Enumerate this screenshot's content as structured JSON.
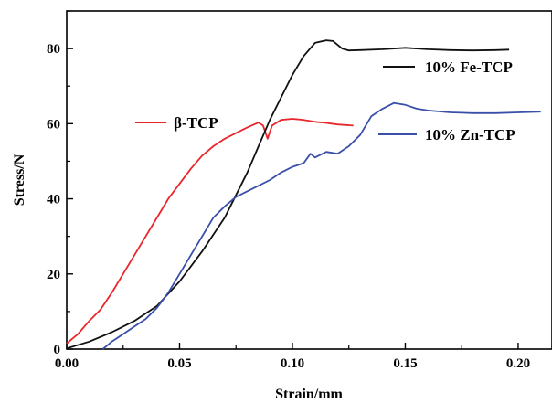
{
  "chart_data": {
    "type": "line",
    "title": "",
    "xlabel": "Strain/mm",
    "ylabel": "Stress/N",
    "xlim": [
      0,
      0.215
    ],
    "ylim": [
      0,
      90
    ],
    "x_ticks": [
      "0.00",
      "0.05",
      "0.10",
      "0.15",
      "0.20"
    ],
    "x_tick_values": [
      0,
      0.05,
      0.1,
      0.15,
      0.2
    ],
    "y_ticks": [
      "0",
      "20",
      "40",
      "60",
      "80"
    ],
    "y_tick_values": [
      0,
      20,
      40,
      60,
      80
    ],
    "grid": false,
    "series": [
      {
        "name": "β-TCP",
        "color": "#e8262b",
        "points": [
          [
            0.0,
            1.5
          ],
          [
            0.005,
            4
          ],
          [
            0.01,
            7.5
          ],
          [
            0.015,
            10.5
          ],
          [
            0.02,
            15
          ],
          [
            0.025,
            20
          ],
          [
            0.03,
            25
          ],
          [
            0.035,
            30
          ],
          [
            0.04,
            35
          ],
          [
            0.045,
            40
          ],
          [
            0.05,
            44
          ],
          [
            0.055,
            48
          ],
          [
            0.06,
            51.5
          ],
          [
            0.065,
            54
          ],
          [
            0.07,
            56
          ],
          [
            0.075,
            57.5
          ],
          [
            0.08,
            59
          ],
          [
            0.085,
            60.3
          ],
          [
            0.087,
            59.5
          ],
          [
            0.089,
            56
          ],
          [
            0.091,
            59.5
          ],
          [
            0.095,
            61
          ],
          [
            0.1,
            61.3
          ],
          [
            0.105,
            61
          ],
          [
            0.11,
            60.5
          ],
          [
            0.115,
            60.2
          ],
          [
            0.12,
            59.8
          ],
          [
            0.127,
            59.5
          ]
        ]
      },
      {
        "name": "10% Fe-TCP",
        "color": "#111111",
        "points": [
          [
            0.0,
            0.2
          ],
          [
            0.01,
            2
          ],
          [
            0.02,
            4.5
          ],
          [
            0.03,
            7.5
          ],
          [
            0.04,
            11.5
          ],
          [
            0.05,
            18
          ],
          [
            0.06,
            26
          ],
          [
            0.07,
            35
          ],
          [
            0.08,
            47
          ],
          [
            0.085,
            54
          ],
          [
            0.09,
            61
          ],
          [
            0.095,
            67
          ],
          [
            0.1,
            73
          ],
          [
            0.105,
            78
          ],
          [
            0.11,
            81.5
          ],
          [
            0.115,
            82.2
          ],
          [
            0.118,
            82
          ],
          [
            0.122,
            80
          ],
          [
            0.125,
            79.5
          ],
          [
            0.13,
            79.6
          ],
          [
            0.14,
            79.8
          ],
          [
            0.15,
            80.2
          ],
          [
            0.16,
            79.8
          ],
          [
            0.17,
            79.6
          ],
          [
            0.18,
            79.5
          ],
          [
            0.19,
            79.6
          ],
          [
            0.196,
            79.7
          ]
        ]
      },
      {
        "name": "10% Zn-TCP",
        "color": "#3a4fa8",
        "points": [
          [
            0.016,
            0
          ],
          [
            0.02,
            2
          ],
          [
            0.025,
            4
          ],
          [
            0.03,
            6
          ],
          [
            0.035,
            8
          ],
          [
            0.04,
            11
          ],
          [
            0.045,
            15
          ],
          [
            0.05,
            20
          ],
          [
            0.055,
            25
          ],
          [
            0.06,
            30
          ],
          [
            0.065,
            35
          ],
          [
            0.07,
            38
          ],
          [
            0.075,
            40.5
          ],
          [
            0.08,
            42
          ],
          [
            0.085,
            43.5
          ],
          [
            0.09,
            45
          ],
          [
            0.095,
            47
          ],
          [
            0.1,
            48.5
          ],
          [
            0.105,
            49.5
          ],
          [
            0.108,
            52
          ],
          [
            0.11,
            51
          ],
          [
            0.115,
            52.5
          ],
          [
            0.12,
            52
          ],
          [
            0.125,
            54
          ],
          [
            0.13,
            57
          ],
          [
            0.135,
            62
          ],
          [
            0.14,
            64
          ],
          [
            0.145,
            65.5
          ],
          [
            0.15,
            65
          ],
          [
            0.155,
            64
          ],
          [
            0.16,
            63.5
          ],
          [
            0.17,
            63
          ],
          [
            0.18,
            62.8
          ],
          [
            0.19,
            62.8
          ],
          [
            0.2,
            63
          ],
          [
            0.21,
            63.2
          ]
        ]
      }
    ],
    "legend": {
      "placement": "inline-labels"
    }
  }
}
